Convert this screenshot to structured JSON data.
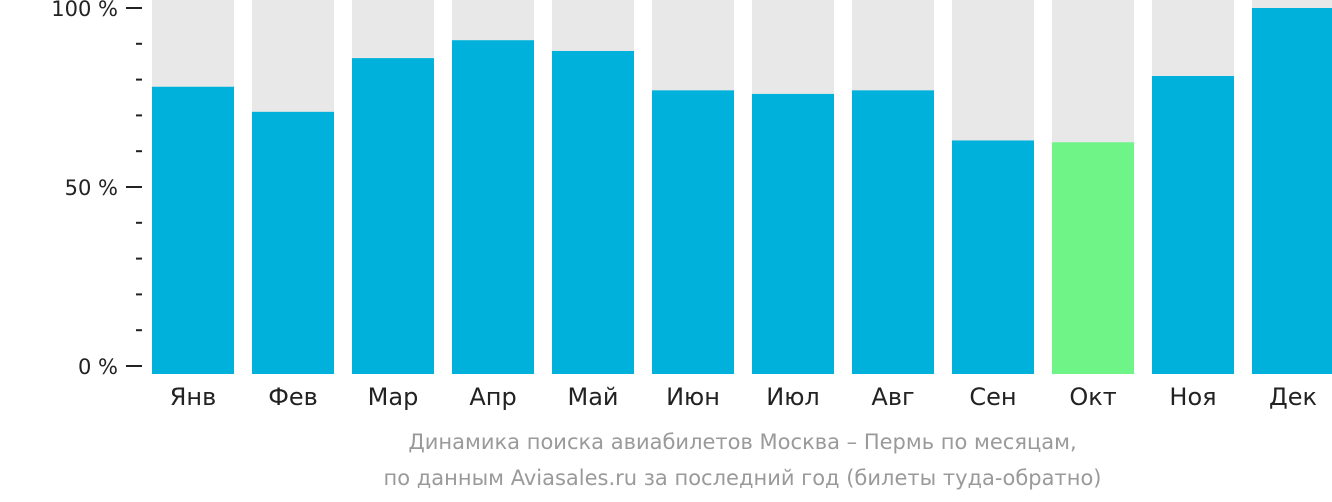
{
  "chart_data": {
    "type": "bar",
    "categories": [
      "Янв",
      "Фев",
      "Мар",
      "Апр",
      "Май",
      "Июн",
      "Июл",
      "Авг",
      "Сен",
      "Окт",
      "Ноя",
      "Дек"
    ],
    "values": [
      78,
      71,
      86,
      91,
      88,
      77,
      76,
      77,
      63,
      62.5,
      81,
      100
    ],
    "ylim": [
      0,
      100
    ],
    "yticks": [
      {
        "value": 0,
        "label": "0 %"
      },
      {
        "value": 50,
        "label": "50 %"
      },
      {
        "value": 100,
        "label": "100 %"
      }
    ],
    "minor_tick_step": 10,
    "highlight_index": 9,
    "colors": {
      "bar": "#00b1dc",
      "highlight": "#6ef487",
      "background_bar": "#e8e8e8",
      "axis": "#222222"
    },
    "caption": [
      "Динамика поиска авиабилетов Москва – Пермь по месяцам,",
      "по данным Aviasales.ru за последний год (билеты туда-обратно)"
    ]
  }
}
